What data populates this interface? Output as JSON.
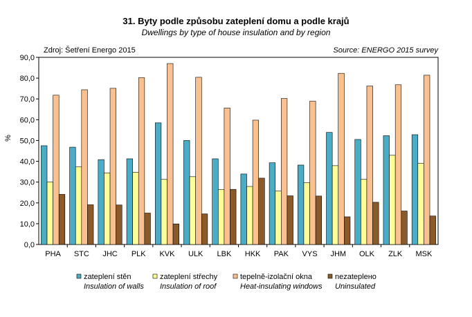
{
  "chart_data": {
    "type": "bar",
    "title": "31. Byty podle způsobu zateplení domu a podle krajů",
    "subtitle": "Dwellings by type of house insulation and by region",
    "source_cz": "Zdroj: Šetření Energo 2015",
    "source_en": "Source: ENERGO 2015 survey",
    "ylabel": "%",
    "xlabel": "",
    "ylim": [
      0,
      90
    ],
    "ytick_values": [
      0,
      10,
      20,
      30,
      40,
      50,
      60,
      70,
      80,
      90
    ],
    "ytick_labels": [
      "0,0",
      "10,0",
      "20,0",
      "30,0",
      "40,0",
      "50,0",
      "60,0",
      "70,0",
      "80,0",
      "90,0"
    ],
    "grid": false,
    "legend_position": "bottom",
    "categories": [
      "PHA",
      "STC",
      "JHC",
      "PLK",
      "KVK",
      "ULK",
      "LBK",
      "HKK",
      "PAK",
      "VYS",
      "JHM",
      "OLK",
      "ZLK",
      "MSK"
    ],
    "series": [
      {
        "name": "zateplení stěn",
        "name_en": "Insulation of walls",
        "color": "#4bacc6",
        "values": [
          47.5,
          46.8,
          40.8,
          41.2,
          58.5,
          50.0,
          41.2,
          33.9,
          39.3,
          38.2,
          53.9,
          50.5,
          52.3,
          52.8
        ]
      },
      {
        "name": "zateplení střechy",
        "name_en": "Insulation of roof",
        "color": "#ffff99",
        "values": [
          30.1,
          37.3,
          34.4,
          34.7,
          31.3,
          32.6,
          26.4,
          27.9,
          25.7,
          29.7,
          37.9,
          31.3,
          42.9,
          39.0
        ]
      },
      {
        "name": "tepelně-izolační okna",
        "name_en": "Heat-insulating windows",
        "color": "#fac090",
        "values": [
          71.8,
          74.4,
          75.1,
          80.2,
          87.0,
          80.4,
          65.6,
          59.8,
          70.2,
          68.9,
          82.3,
          76.2,
          76.8,
          81.4
        ]
      },
      {
        "name": "nezateplено",
        "name_en": "Uninsulated",
        "color": "#8b5a2b",
        "values": [
          24.1,
          19.1,
          19.0,
          15.1,
          9.9,
          14.7,
          26.5,
          31.9,
          23.4,
          23.3,
          13.3,
          20.3,
          16.1,
          13.7
        ]
      }
    ]
  }
}
